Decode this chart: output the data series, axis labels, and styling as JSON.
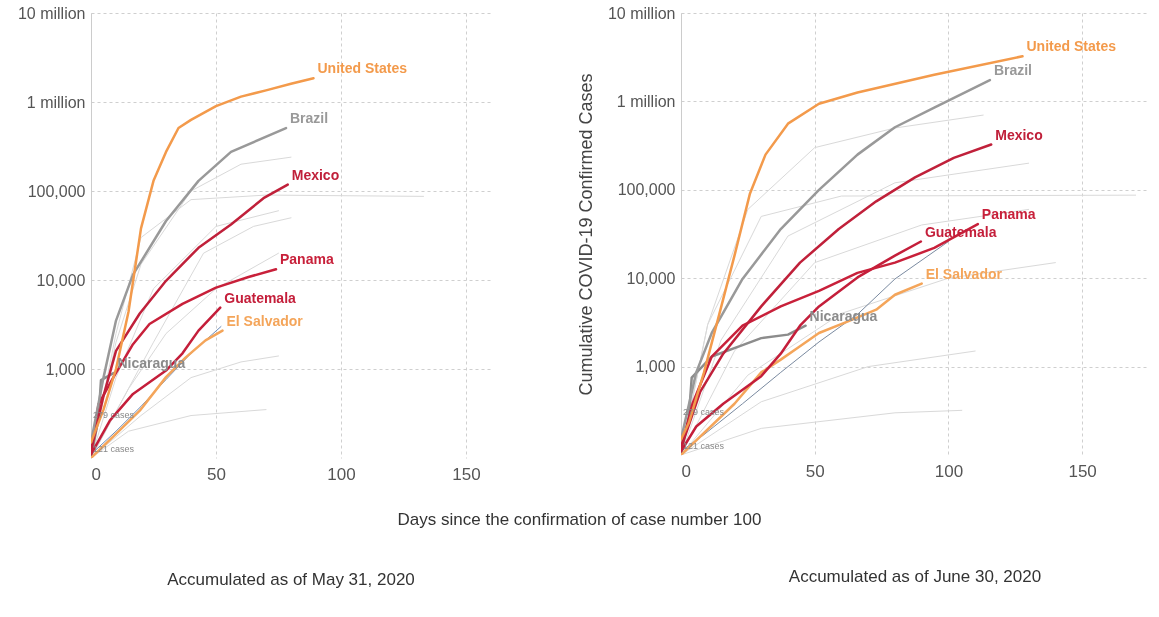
{
  "chart_data": [
    {
      "type": "line",
      "title": "Accumulated as of May 31, 2020",
      "xlabel": "Days since the confirmation of case number 100",
      "log": true,
      "grid": true,
      "legend": false,
      "marker": "none",
      "line_style": "solid",
      "xlim": [
        0,
        160
      ],
      "ylim": [
        100,
        10000000
      ],
      "xticks": [
        0,
        50,
        100,
        150
      ],
      "yticks": [
        {
          "value": 1000,
          "label": "1,000"
        },
        {
          "value": 10000,
          "label": "10,000"
        },
        {
          "value": 100000,
          "label": "100,000"
        },
        {
          "value": 1000000,
          "label": "1 million"
        },
        {
          "value": 10000000,
          "label": "10 million"
        }
      ],
      "annotations": [
        "279 cases",
        "121 cases"
      ],
      "series": [
        {
          "color": "#d9d9d9",
          "x": [
            0,
            10,
            20,
            40,
            60,
            80
          ],
          "values": [
            100,
            2000,
            15000,
            100000,
            200000,
            240000
          ]
        },
        {
          "color": "#d9d9d9",
          "x": [
            0,
            10,
            25,
            50,
            75
          ],
          "values": [
            100,
            800,
            8000,
            40000,
            60000
          ]
        },
        {
          "color": "#d9d9d9",
          "x": [
            0,
            15,
            30,
            50,
            75
          ],
          "values": [
            100,
            600,
            2500,
            8000,
            20000
          ]
        },
        {
          "color": "#d9d9d9",
          "x": [
            0,
            20,
            40,
            60,
            75
          ],
          "values": [
            100,
            300,
            800,
            1200,
            1400
          ]
        },
        {
          "color": "#d9d9d9",
          "x": [
            0,
            15,
            40,
            70
          ],
          "values": [
            100,
            200,
            300,
            350
          ]
        },
        {
          "color": "#d9d9d9",
          "x": [
            0,
            10,
            20,
            40,
            70,
            133
          ],
          "values": [
            100,
            2500,
            30000,
            80000,
            90000,
            87000
          ]
        },
        {
          "color": "#d9d9d9",
          "x": [
            0,
            25,
            45,
            65,
            80
          ],
          "values": [
            100,
            2000,
            20000,
            40000,
            50000
          ]
        },
        {
          "color": "#6b8cb8",
          "x": [
            0,
            10,
            20,
            30,
            40,
            52
          ],
          "values": [
            110,
            200,
            380,
            760,
            1500,
            3000
          ]
        },
        {
          "name": "Nicaragua",
          "color": "#8c8c8c",
          "x": [
            0,
            3,
            4,
            9
          ],
          "values": [
            100,
            280,
            750,
            900
          ]
        },
        {
          "name": "El Salvador",
          "color": "#f4a55a",
          "x": [
            0,
            10,
            19.5,
            30,
            37.9,
            45.8,
            52.6
          ],
          "values": [
            100,
            187,
            340,
            810,
            1350,
            2100,
            2700
          ]
        },
        {
          "name": "Guatemala",
          "color": "#c41e3a",
          "x": [
            0,
            7.6,
            16.8,
            30,
            36.6,
            43,
            51.7
          ],
          "values": [
            110,
            265,
            525,
            960,
            1500,
            2700,
            4900
          ]
        },
        {
          "name": "Panama",
          "color": "#c8203a",
          "x": [
            0,
            3,
            9,
            16.8,
            23.4,
            36.6,
            50,
            63,
            74
          ],
          "values": [
            120,
            400,
            810,
            1900,
            3200,
            5400,
            8200,
            10800,
            13200
          ]
        },
        {
          "name": "Mexico",
          "color": "#c0203a",
          "x": [
            0,
            5,
            10,
            19.5,
            30,
            43,
            56,
            69,
            78.7
          ],
          "values": [
            120,
            500,
            1600,
            4200,
            9800,
            23000,
            42000,
            83000,
            118000
          ]
        },
        {
          "name": "Brazil",
          "color": "#999999",
          "x": [
            0,
            5,
            10,
            16.8,
            30,
            43,
            56,
            78
          ],
          "values": [
            150,
            800,
            3500,
            11500,
            46000,
            130000,
            275000,
            510000
          ]
        },
        {
          "name": "United States",
          "color": "#f39a4b",
          "x": [
            0,
            5,
            10,
            15,
            20,
            25,
            30,
            35,
            40,
            50,
            60,
            70,
            80,
            89
          ],
          "values": [
            150,
            350,
            1000,
            4400,
            38000,
            130000,
            275000,
            510000,
            630000,
            900000,
            1150000,
            1350000,
            1600000,
            1850000
          ]
        }
      ]
    },
    {
      "type": "line",
      "title": "Accumulated as of June 30, 2020",
      "ylabel": "Cumulative COVID-19 Confirmed Cases",
      "log": true,
      "grid": true,
      "legend": false,
      "marker": "none",
      "line_style": "solid",
      "xlim": [
        0,
        175
      ],
      "ylim": [
        100,
        10000000
      ],
      "xticks": [
        0,
        50,
        100,
        150
      ],
      "yticks": [
        {
          "value": 1000,
          "label": "1,000"
        },
        {
          "value": 10000,
          "label": "10,000"
        },
        {
          "value": 100000,
          "label": "100,000"
        },
        {
          "value": 1000000,
          "label": "1 million"
        },
        {
          "value": 10000000,
          "label": "10 million"
        }
      ],
      "annotations": [
        "279 cases",
        "121 cases"
      ],
      "series": [
        {
          "color": "#d9d9d9",
          "x": [
            0,
            10,
            25,
            50,
            80,
            113
          ],
          "values": [
            100,
            3000,
            60000,
            300000,
            500000,
            700000
          ]
        },
        {
          "color": "#d9d9d9",
          "x": [
            0,
            15,
            40,
            80,
            130
          ],
          "values": [
            100,
            2000,
            30000,
            120000,
            200000
          ]
        },
        {
          "color": "#d9d9d9",
          "x": [
            0,
            20,
            50,
            90,
            130
          ],
          "values": [
            100,
            1500,
            15000,
            40000,
            60000
          ]
        },
        {
          "color": "#d9d9d9",
          "x": [
            0,
            25,
            60,
            100,
            140
          ],
          "values": [
            100,
            800,
            4000,
            10000,
            15000
          ]
        },
        {
          "color": "#d9d9d9",
          "x": [
            0,
            30,
            70,
            110
          ],
          "values": [
            100,
            400,
            1000,
            1500
          ]
        },
        {
          "color": "#d9d9d9",
          "x": [
            0,
            30,
            80,
            105
          ],
          "values": [
            100,
            200,
            300,
            320
          ]
        },
        {
          "color": "#d9d9d9",
          "x": [
            0,
            10,
            30,
            60,
            170
          ],
          "values": [
            100,
            3000,
            50000,
            85000,
            87000
          ]
        },
        {
          "color": "#7a8aa0",
          "x": [
            0,
            8.6,
            23,
            37.3,
            51.6,
            66,
            80,
            100
          ],
          "values": [
            110,
            170,
            380,
            860,
            1900,
            3900,
            9800,
            26000
          ]
        },
        {
          "name": "Nicaragua",
          "color": "#8c8c8c",
          "x": [
            0,
            3,
            4,
            11.5,
            23,
            30,
            40,
            46.6
          ],
          "values": [
            100,
            280,
            750,
            1300,
            1750,
            2100,
            2300,
            2900
          ]
        },
        {
          "name": "El Salvador",
          "color": "#f4a55a",
          "x": [
            0,
            20,
            30,
            37.3,
            44.5,
            51.6,
            62,
            73,
            80,
            90
          ],
          "values": [
            100,
            380,
            860,
            1200,
            1700,
            2400,
            3200,
            4400,
            6500,
            8700
          ]
        },
        {
          "name": "Guatemala",
          "color": "#c41e3a",
          "x": [
            0,
            5.7,
            15.8,
            30,
            37.3,
            44.5,
            51.6,
            66,
            80,
            89.7
          ],
          "values": [
            110,
            210,
            380,
            780,
            1400,
            2900,
            4800,
            10200,
            18000,
            26000
          ]
        },
        {
          "name": "Panama",
          "color": "#c8203a",
          "x": [
            0,
            4.3,
            11.5,
            23,
            37.3,
            51.6,
            66,
            80,
            94.7,
            111
          ],
          "values": [
            120,
            380,
            1300,
            2900,
            4800,
            7200,
            11500,
            15000,
            22000,
            41000
          ]
        },
        {
          "name": "Mexico",
          "color": "#c0203a",
          "x": [
            0,
            7.2,
            15.8,
            30,
            44.5,
            59,
            73,
            87.5,
            102,
            116
          ],
          "values": [
            120,
            520,
            1400,
            4800,
            15000,
            36000,
            74000,
            138000,
            230000,
            325000
          ]
        },
        {
          "name": "Brazil",
          "color": "#999999",
          "x": [
            0,
            5.7,
            11.5,
            23,
            37.3,
            51.6,
            66,
            80,
            94.7,
            115.5
          ],
          "values": [
            150,
            860,
            2400,
            9800,
            36000,
            100000,
            250000,
            510000,
            850000,
            1740000
          ]
        },
        {
          "name": "United States",
          "color": "#f39a4b",
          "x": [
            0,
            2.9,
            8.6,
            14.3,
            20,
            25.8,
            31.6,
            40,
            51.6,
            66,
            94.7,
            127.7
          ],
          "values": [
            150,
            230,
            860,
            3900,
            18000,
            91000,
            250000,
            560000,
            940000,
            1260000,
            2000000,
            3240000
          ]
        }
      ]
    }
  ]
}
